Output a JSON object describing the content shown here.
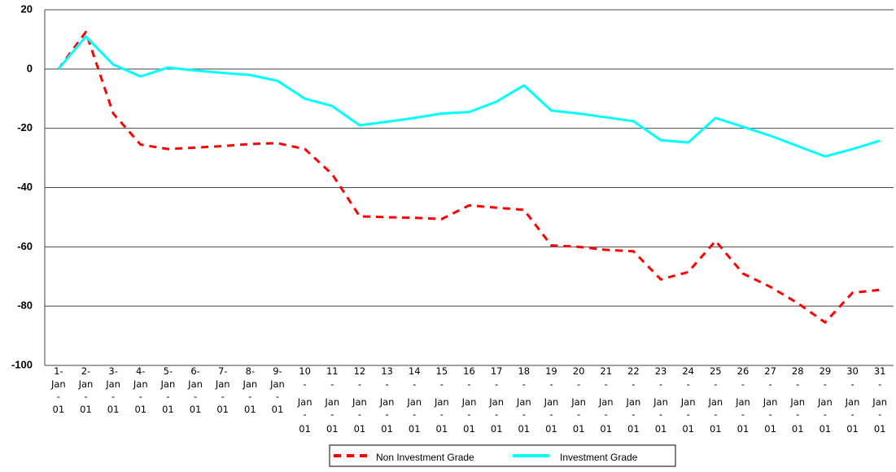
{
  "chart_data": {
    "type": "line",
    "categories": [
      "1-Jan-01",
      "2-Jan-01",
      "3-Jan-01",
      "4-Jan-01",
      "5-Jan-01",
      "6-Jan-01",
      "7-Jan-01",
      "8-Jan-01",
      "9-Jan-01",
      "10-Jan-01",
      "11-Jan-01",
      "12-Jan-01",
      "13-Jan-01",
      "14-Jan-01",
      "15-Jan-01",
      "16-Jan-01",
      "17-Jan-01",
      "18-Jan-01",
      "19-Jan-01",
      "20-Jan-01",
      "21-Jan-01",
      "22-Jan-01",
      "23-Jan-01",
      "24-Jan-01",
      "25-Jan-01",
      "26-Jan-01",
      "27-Jan-01",
      "28-Jan-01",
      "29-Jan-01",
      "30-Jan-01",
      "31-Jan-01"
    ],
    "series": [
      {
        "name": "Non Investment Grade",
        "color": "#ff0000",
        "dashed": true,
        "values": [
          0,
          12.5,
          -15,
          -25.5,
          -27,
          -26.5,
          -26,
          -25.3,
          -25,
          -27,
          -35.5,
          -49.7,
          -50,
          -50.2,
          -50.6,
          -46,
          -46.8,
          -47.5,
          -59.5,
          -60,
          -61,
          -61.5,
          -71,
          -68.5,
          -58,
          -69,
          -73.5,
          -79,
          -85.5,
          -75.5,
          -74.5
        ]
      },
      {
        "name": "Investment Grade",
        "color": "#00ffff",
        "dashed": false,
        "values": [
          0,
          11,
          1.5,
          -2.5,
          0.5,
          -0.5,
          -1.3,
          -2,
          -4,
          -10,
          -12.5,
          -19,
          -17.8,
          -16.5,
          -15,
          -14.5,
          -11,
          -5.5,
          -14,
          -15,
          -16.3,
          -17.6,
          -24,
          -24.8,
          -16.5,
          -19.5,
          -22.5,
          -26,
          -29.5,
          -27,
          -24.2
        ]
      }
    ],
    "ylim": [
      -100,
      20
    ],
    "yticks": [
      -100,
      -80,
      -60,
      -40,
      -20,
      0,
      20
    ],
    "grid": true,
    "legend": "bottom"
  }
}
